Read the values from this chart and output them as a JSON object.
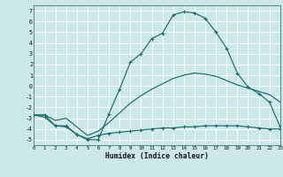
{
  "xlabel": "Humidex (Indice chaleur)",
  "bg_color": "#cce8e8",
  "grid_color": "#ffffff",
  "line_color": "#1a6b6b",
  "xlim": [
    0,
    23
  ],
  "ylim": [
    -5.5,
    7.5
  ],
  "xticks": [
    0,
    1,
    2,
    3,
    4,
    5,
    6,
    7,
    8,
    9,
    10,
    11,
    12,
    13,
    14,
    15,
    16,
    17,
    18,
    19,
    20,
    21,
    22,
    23
  ],
  "yticks": [
    -5,
    -4,
    -3,
    -2,
    -1,
    0,
    1,
    2,
    3,
    4,
    5,
    6,
    7
  ],
  "curve1_x": [
    0,
    1,
    2,
    3,
    4,
    5,
    6,
    7,
    8,
    9,
    10,
    11,
    12,
    13,
    14,
    15,
    16,
    17,
    18,
    19,
    20,
    21,
    22,
    23
  ],
  "curve1_y": [
    -2.7,
    -2.9,
    -3.7,
    -3.8,
    -4.5,
    -5.0,
    -5.0,
    -2.6,
    -0.3,
    2.2,
    3.0,
    4.4,
    4.9,
    6.6,
    6.9,
    6.8,
    6.3,
    5.0,
    3.5,
    1.2,
    -0.1,
    -0.7,
    -1.5,
    -3.8
  ],
  "curve2_x": [
    0,
    1,
    2,
    3,
    4,
    5,
    6,
    7,
    8,
    9,
    10,
    11,
    12,
    13,
    14,
    15,
    16,
    17,
    18,
    19,
    20,
    21,
    22,
    23
  ],
  "curve2_y": [
    -2.7,
    -2.7,
    -3.7,
    -3.7,
    -4.5,
    -4.9,
    -4.6,
    -4.4,
    -4.3,
    -4.2,
    -4.1,
    -4.0,
    -3.9,
    -3.9,
    -3.8,
    -3.8,
    -3.7,
    -3.7,
    -3.7,
    -3.7,
    -3.8,
    -3.9,
    -4.0,
    -4.0
  ],
  "curve3_x": [
    0,
    1,
    2,
    3,
    4,
    5,
    6,
    7,
    8,
    9,
    10,
    11,
    12,
    13,
    14,
    15,
    16,
    17,
    18,
    19,
    20,
    21,
    22,
    23
  ],
  "curve3_y": [
    -2.7,
    -2.7,
    -3.2,
    -3.0,
    -3.8,
    -4.6,
    -4.2,
    -3.4,
    -2.5,
    -1.6,
    -0.9,
    -0.3,
    0.2,
    0.7,
    1.0,
    1.2,
    1.1,
    0.9,
    0.5,
    0.1,
    -0.2,
    -0.5,
    -0.8,
    -1.5
  ]
}
